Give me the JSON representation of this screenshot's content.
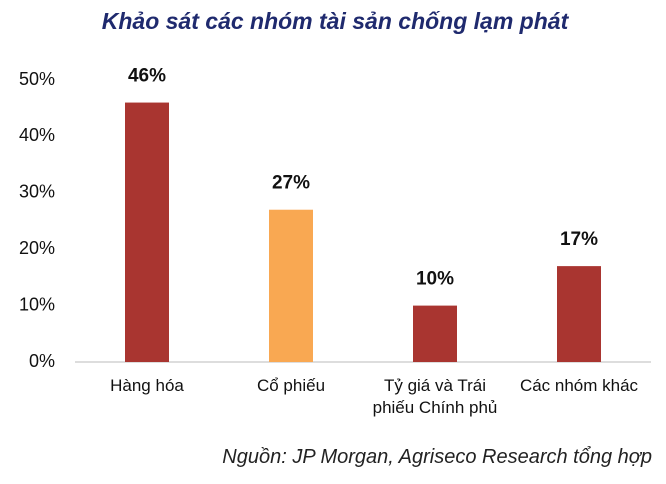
{
  "chart_data": {
    "type": "bar",
    "title": "Khảo sát các nhóm tài sản chống lạm phát",
    "categories": [
      "Hàng hóa",
      "Cổ phiếu",
      "Tỷ giá và Trái phiếu Chính phủ",
      "Các nhóm khác"
    ],
    "values": [
      46,
      27,
      10,
      17
    ],
    "value_labels": [
      "46%",
      "27%",
      "10%",
      "17%"
    ],
    "colors": [
      "#a93530",
      "#f9a852",
      "#a93530",
      "#a93530"
    ],
    "ylim": [
      0,
      50
    ],
    "yticks": [
      {
        "value": 0,
        "label": "0%"
      },
      {
        "value": 10,
        "label": "10%"
      },
      {
        "value": 20,
        "label": "20%"
      },
      {
        "value": 30,
        "label": "30%"
      },
      {
        "value": 40,
        "label": "40%"
      },
      {
        "value": 50,
        "label": "50%"
      }
    ],
    "grid": false,
    "source": "Nguồn: JP Morgan, Agriseco Research tổng hợp"
  }
}
